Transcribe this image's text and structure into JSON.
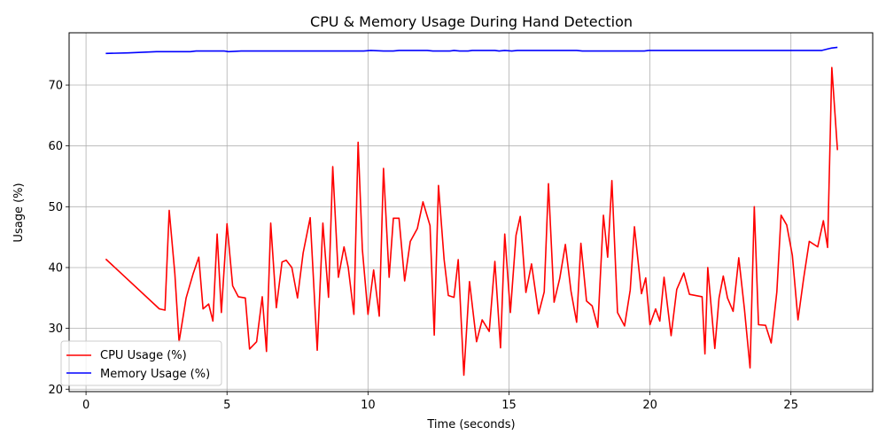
{
  "chart_data": {
    "type": "line",
    "title": "CPU & Memory Usage During Hand Detection",
    "xlabel": "Time (seconds)",
    "ylabel": "Usage (%)",
    "xlim": [
      -0.6,
      27.9
    ],
    "ylim": [
      19.6,
      78.6
    ],
    "xticks": [
      0,
      5,
      10,
      15,
      20,
      25
    ],
    "yticks": [
      20,
      30,
      40,
      50,
      60,
      70
    ],
    "grid": true,
    "legend_position": "lower-left",
    "series": [
      {
        "name": "CPU Usage (%)",
        "color": "#ff0000",
        "points": [
          [
            0.7,
            41.4
          ],
          [
            2.6,
            33.2
          ],
          [
            2.8,
            33.0
          ],
          [
            2.95,
            49.4
          ],
          [
            3.15,
            39.0
          ],
          [
            3.3,
            27.8
          ],
          [
            3.55,
            35.0
          ],
          [
            3.8,
            39.0
          ],
          [
            4.0,
            41.7
          ],
          [
            4.15,
            33.2
          ],
          [
            4.35,
            34.0
          ],
          [
            4.5,
            31.2
          ],
          [
            4.65,
            45.5
          ],
          [
            4.8,
            32.6
          ],
          [
            5.0,
            47.2
          ],
          [
            5.2,
            37.0
          ],
          [
            5.4,
            35.2
          ],
          [
            5.65,
            35.0
          ],
          [
            5.8,
            26.6
          ],
          [
            6.05,
            27.8
          ],
          [
            6.25,
            35.2
          ],
          [
            6.4,
            26.2
          ],
          [
            6.55,
            47.3
          ],
          [
            6.75,
            33.4
          ],
          [
            6.95,
            40.9
          ],
          [
            7.1,
            41.2
          ],
          [
            7.3,
            40.0
          ],
          [
            7.5,
            35.0
          ],
          [
            7.7,
            42.4
          ],
          [
            7.95,
            48.2
          ],
          [
            8.2,
            26.4
          ],
          [
            8.4,
            47.3
          ],
          [
            8.6,
            35.1
          ],
          [
            8.75,
            56.6
          ],
          [
            8.95,
            38.4
          ],
          [
            9.15,
            43.4
          ],
          [
            9.3,
            40.0
          ],
          [
            9.5,
            32.3
          ],
          [
            9.65,
            60.6
          ],
          [
            9.8,
            43.0
          ],
          [
            10.0,
            32.3
          ],
          [
            10.2,
            39.6
          ],
          [
            10.4,
            32.0
          ],
          [
            10.55,
            56.3
          ],
          [
            10.75,
            38.4
          ],
          [
            10.9,
            48.1
          ],
          [
            11.1,
            48.1
          ],
          [
            11.3,
            37.8
          ],
          [
            11.5,
            44.3
          ],
          [
            11.75,
            46.4
          ],
          [
            11.95,
            50.8
          ],
          [
            12.2,
            46.9
          ],
          [
            12.35,
            28.9
          ],
          [
            12.5,
            53.5
          ],
          [
            12.7,
            41.3
          ],
          [
            12.85,
            35.4
          ],
          [
            13.05,
            35.1
          ],
          [
            13.2,
            41.3
          ],
          [
            13.4,
            22.3
          ],
          [
            13.6,
            37.7
          ],
          [
            13.85,
            27.8
          ],
          [
            14.05,
            31.4
          ],
          [
            14.3,
            29.5
          ],
          [
            14.5,
            41.0
          ],
          [
            14.7,
            26.8
          ],
          [
            14.85,
            45.5
          ],
          [
            15.05,
            32.6
          ],
          [
            15.25,
            45.3
          ],
          [
            15.4,
            48.4
          ],
          [
            15.6,
            35.9
          ],
          [
            15.8,
            40.6
          ],
          [
            16.05,
            32.4
          ],
          [
            16.25,
            36.0
          ],
          [
            16.4,
            53.8
          ],
          [
            16.6,
            34.3
          ],
          [
            16.8,
            38.2
          ],
          [
            17.0,
            43.8
          ],
          [
            17.2,
            36.1
          ],
          [
            17.4,
            31.0
          ],
          [
            17.55,
            44.0
          ],
          [
            17.75,
            34.5
          ],
          [
            17.95,
            33.7
          ],
          [
            18.15,
            30.2
          ],
          [
            18.35,
            48.6
          ],
          [
            18.5,
            41.7
          ],
          [
            18.65,
            54.3
          ],
          [
            18.85,
            32.6
          ],
          [
            19.1,
            30.4
          ],
          [
            19.3,
            36.3
          ],
          [
            19.45,
            46.7
          ],
          [
            19.7,
            35.7
          ],
          [
            19.85,
            38.3
          ],
          [
            20.0,
            30.6
          ],
          [
            20.2,
            33.2
          ],
          [
            20.35,
            31.2
          ],
          [
            20.5,
            38.4
          ],
          [
            20.75,
            28.8
          ],
          [
            20.95,
            36.4
          ],
          [
            21.2,
            39.1
          ],
          [
            21.4,
            35.6
          ],
          [
            21.85,
            35.2
          ],
          [
            21.95,
            25.8
          ],
          [
            22.05,
            40.0
          ],
          [
            22.3,
            26.7
          ],
          [
            22.45,
            35.0
          ],
          [
            22.6,
            38.6
          ],
          [
            22.75,
            35.0
          ],
          [
            22.95,
            32.8
          ],
          [
            23.15,
            41.6
          ],
          [
            23.35,
            33.2
          ],
          [
            23.55,
            23.5
          ],
          [
            23.7,
            50.0
          ],
          [
            23.85,
            30.6
          ],
          [
            24.1,
            30.5
          ],
          [
            24.3,
            27.6
          ],
          [
            24.5,
            36.0
          ],
          [
            24.65,
            48.6
          ],
          [
            24.85,
            47.0
          ],
          [
            25.05,
            42.0
          ],
          [
            25.25,
            31.4
          ],
          [
            25.45,
            38.2
          ],
          [
            25.65,
            44.3
          ],
          [
            25.95,
            43.4
          ],
          [
            26.15,
            47.7
          ],
          [
            26.3,
            43.3
          ],
          [
            26.45,
            72.9
          ],
          [
            26.65,
            59.3
          ]
        ]
      },
      {
        "name": "Memory Usage (%)",
        "color": "#0000ff",
        "points": [
          [
            0.7,
            75.2
          ],
          [
            1.5,
            75.3
          ],
          [
            2.5,
            75.5
          ],
          [
            3.7,
            75.5
          ],
          [
            3.9,
            75.6
          ],
          [
            4.9,
            75.6
          ],
          [
            5.05,
            75.5
          ],
          [
            5.5,
            75.6
          ],
          [
            9.85,
            75.6
          ],
          [
            10.1,
            75.7
          ],
          [
            10.55,
            75.6
          ],
          [
            10.9,
            75.6
          ],
          [
            11.1,
            75.7
          ],
          [
            12.1,
            75.7
          ],
          [
            12.3,
            75.6
          ],
          [
            12.9,
            75.6
          ],
          [
            13.05,
            75.7
          ],
          [
            13.25,
            75.6
          ],
          [
            13.55,
            75.6
          ],
          [
            13.7,
            75.7
          ],
          [
            14.5,
            75.7
          ],
          [
            14.65,
            75.6
          ],
          [
            14.85,
            75.7
          ],
          [
            15.1,
            75.6
          ],
          [
            15.3,
            75.7
          ],
          [
            17.4,
            75.7
          ],
          [
            17.6,
            75.6
          ],
          [
            19.8,
            75.6
          ],
          [
            19.95,
            75.7
          ],
          [
            26.1,
            75.7
          ],
          [
            26.35,
            76.0
          ],
          [
            26.45,
            76.1
          ],
          [
            26.65,
            76.2
          ]
        ]
      }
    ]
  }
}
